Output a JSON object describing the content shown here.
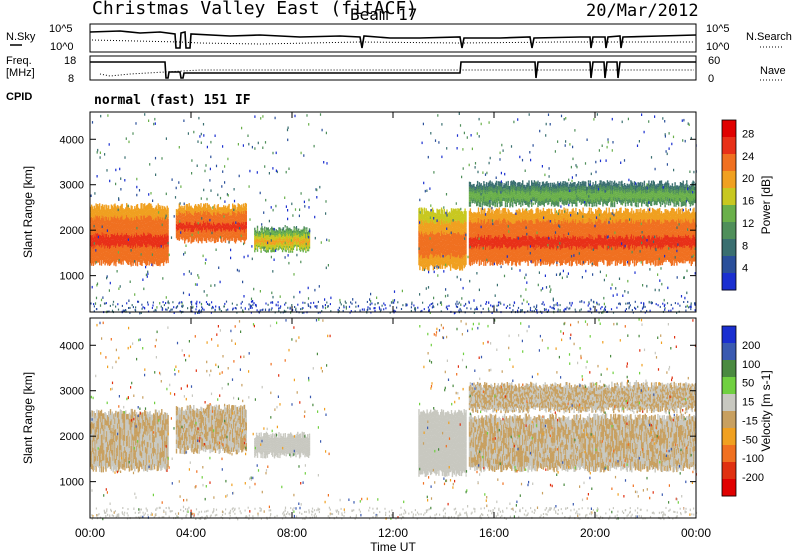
{
  "header": {
    "station": "Christmas Valley East (fitACF)",
    "beam": "Beam 17",
    "date": "20/Mar/2012"
  },
  "strip_labels": {
    "nsky": "N.Sky",
    "nsky_ticks": [
      "10^5",
      "10^0"
    ],
    "nsearch": "N.Search",
    "nsearch_ticks": [
      "10^5",
      "10^0"
    ],
    "freq": "Freq.",
    "freq_unit": "[MHz]",
    "freq_ticks": [
      "18",
      "8"
    ],
    "nave": "Nave",
    "nave_ticks": [
      "60",
      "0"
    ],
    "cpid": "CPID",
    "cpid_text": "normal (fast) 151 IF"
  },
  "colors": {
    "power": [
      "#1a2fd0",
      "#2a4f9a",
      "#3a6f70",
      "#4f8f5a",
      "#6ab04a",
      "#c8c820",
      "#f0a020",
      "#f07020",
      "#e83018",
      "#e00000"
    ],
    "velocity": [
      "#1a2fd0",
      "#3a5ab0",
      "#4a8a40",
      "#70d040",
      "#c8c8c0",
      "#c8a060",
      "#f0a020",
      "#f07020",
      "#e03010",
      "#e00000"
    ]
  },
  "chart_data": [
    {
      "type": "heatmap",
      "title": "",
      "xlabel": "Time UT",
      "ylabel": "Slant Range [km]",
      "xlim": [
        0,
        24
      ],
      "ylim": [
        200,
        4600
      ],
      "x_ticks": [
        "00:00",
        "04:00",
        "08:00",
        "12:00",
        "16:00",
        "20:00",
        "00:00"
      ],
      "y_ticks": [
        "1000",
        "2000",
        "3000",
        "4000"
      ],
      "colorbar": {
        "label": "Power [dB]",
        "ticks": [
          "4",
          "8",
          "12",
          "16",
          "20",
          "24",
          "28"
        ],
        "range": [
          0,
          30
        ]
      },
      "bands": [
        {
          "t_start": 0.0,
          "t_end": 3.1,
          "range_low": 1200,
          "range_high": 2600,
          "value": 20
        },
        {
          "t_start": 3.4,
          "t_end": 6.2,
          "range_low": 1700,
          "range_high": 2600,
          "value": 20
        },
        {
          "t_start": 6.5,
          "t_end": 8.7,
          "range_low": 1500,
          "range_high": 2100,
          "value": 13
        },
        {
          "t_start": 13.0,
          "t_end": 14.9,
          "range_low": 1100,
          "range_high": 2500,
          "value": 18
        },
        {
          "t_start": 15.0,
          "t_end": 24.0,
          "range_low": 1200,
          "range_high": 2500,
          "value": 20
        },
        {
          "t_start": 15.0,
          "t_end": 24.0,
          "range_low": 2500,
          "range_high": 3100,
          "value": 9
        }
      ]
    },
    {
      "type": "heatmap",
      "title": "",
      "xlabel": "Time UT",
      "ylabel": "Slant Range [km]",
      "xlim": [
        0,
        24
      ],
      "ylim": [
        200,
        4600
      ],
      "x_ticks": [
        "00:00",
        "04:00",
        "08:00",
        "12:00",
        "16:00",
        "20:00",
        "00:00"
      ],
      "y_ticks": [
        "1000",
        "2000",
        "3000",
        "4000"
      ],
      "colorbar": {
        "label": "Velocity [m s-1]",
        "ticks": [
          "200",
          "100",
          "50",
          "15",
          "-15",
          "-50",
          "-100",
          "-200"
        ],
        "range": [
          -250,
          250
        ]
      },
      "bands": [
        {
          "t_start": 0.0,
          "t_end": 3.1,
          "range_low": 1200,
          "range_high": 2600,
          "value": 0
        },
        {
          "t_start": 3.4,
          "t_end": 6.2,
          "range_low": 1600,
          "range_high": 2700,
          "value": 0
        },
        {
          "t_start": 6.5,
          "t_end": 8.7,
          "range_low": 1500,
          "range_high": 2100,
          "value": 30
        },
        {
          "t_start": 13.0,
          "t_end": 14.9,
          "range_low": 1100,
          "range_high": 2600,
          "value": 30
        },
        {
          "t_start": 15.0,
          "t_end": 24.0,
          "range_low": 1200,
          "range_high": 2500,
          "value": 0
        },
        {
          "t_start": 15.0,
          "t_end": 24.0,
          "range_low": 2500,
          "range_high": 3200,
          "value": 0
        }
      ]
    }
  ]
}
